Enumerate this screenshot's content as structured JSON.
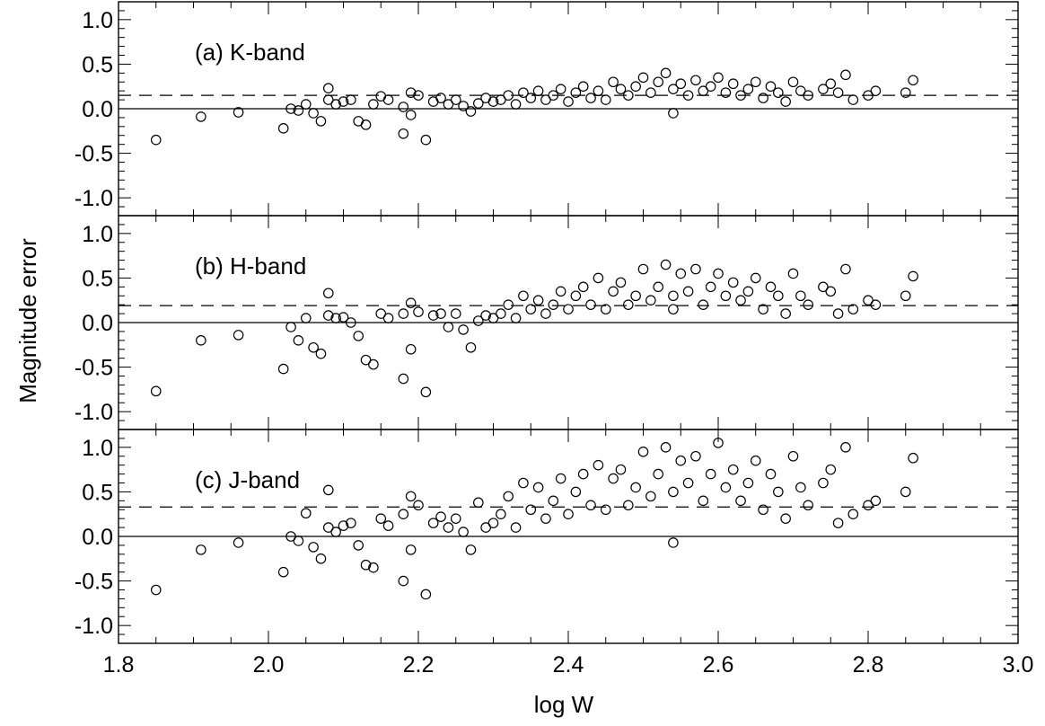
{
  "figure": {
    "ylabel": "Magnitude error",
    "xlabel": "log W"
  },
  "chart_data": [
    {
      "type": "scatter",
      "annotation": "(a) K-band",
      "xlim": [
        1.8,
        3.0
      ],
      "ylim": [
        -1.2,
        1.2
      ],
      "x_ticks": [
        "1.8",
        "2.0",
        "2.2",
        "2.4",
        "2.6",
        "2.8",
        "3.0"
      ],
      "y_ticks": [
        "-1.0",
        "-0.5",
        "0.0",
        "0.5",
        "1.0"
      ],
      "reference_lines": [
        {
          "style": "solid",
          "y": 0.0
        },
        {
          "style": "dashed",
          "y": 0.15
        }
      ],
      "x": [
        1.85,
        1.91,
        1.96,
        2.02,
        2.03,
        2.04,
        2.05,
        2.06,
        2.07,
        2.08,
        2.08,
        2.09,
        2.1,
        2.11,
        2.12,
        2.13,
        2.14,
        2.15,
        2.16,
        2.18,
        2.18,
        2.19,
        2.19,
        2.2,
        2.21,
        2.22,
        2.23,
        2.24,
        2.25,
        2.26,
        2.27,
        2.28,
        2.29,
        2.3,
        2.31,
        2.32,
        2.33,
        2.34,
        2.35,
        2.36,
        2.37,
        2.38,
        2.39,
        2.4,
        2.41,
        2.42,
        2.43,
        2.44,
        2.45,
        2.46,
        2.47,
        2.48,
        2.49,
        2.5,
        2.51,
        2.52,
        2.53,
        2.54,
        2.54,
        2.55,
        2.56,
        2.57,
        2.58,
        2.59,
        2.6,
        2.61,
        2.62,
        2.63,
        2.64,
        2.65,
        2.66,
        2.67,
        2.68,
        2.69,
        2.7,
        2.71,
        2.72,
        2.74,
        2.75,
        2.76,
        2.77,
        2.78,
        2.8,
        2.81,
        2.85,
        2.86
      ],
      "y": [
        -0.35,
        -0.09,
        -0.04,
        -0.22,
        0.0,
        -0.02,
        0.05,
        -0.05,
        -0.14,
        0.1,
        0.23,
        0.05,
        0.08,
        0.1,
        -0.14,
        -0.18,
        0.05,
        0.14,
        0.1,
        -0.28,
        0.02,
        -0.07,
        0.18,
        0.15,
        -0.35,
        0.08,
        0.12,
        0.05,
        0.1,
        0.03,
        -0.03,
        0.06,
        0.12,
        0.08,
        0.1,
        0.15,
        0.05,
        0.18,
        0.12,
        0.2,
        0.1,
        0.15,
        0.22,
        0.08,
        0.18,
        0.25,
        0.12,
        0.2,
        0.1,
        0.3,
        0.22,
        0.15,
        0.25,
        0.35,
        0.18,
        0.3,
        0.4,
        -0.05,
        0.22,
        0.28,
        0.15,
        0.32,
        0.2,
        0.25,
        0.35,
        0.18,
        0.28,
        0.15,
        0.22,
        0.3,
        0.12,
        0.25,
        0.18,
        0.08,
        0.3,
        0.2,
        0.15,
        0.22,
        0.28,
        0.18,
        0.38,
        0.1,
        0.15,
        0.2,
        0.18,
        0.32
      ]
    },
    {
      "type": "scatter",
      "annotation": "(b) H-band",
      "xlim": [
        1.8,
        3.0
      ],
      "ylim": [
        -1.2,
        1.2
      ],
      "x_ticks": [
        "1.8",
        "2.0",
        "2.2",
        "2.4",
        "2.6",
        "2.8",
        "3.0"
      ],
      "y_ticks": [
        "-1.0",
        "-0.5",
        "0.0",
        "0.5",
        "1.0"
      ],
      "reference_lines": [
        {
          "style": "solid",
          "y": 0.0
        },
        {
          "style": "dashed",
          "y": 0.19
        }
      ],
      "x": [
        1.85,
        1.91,
        1.96,
        2.02,
        2.03,
        2.04,
        2.05,
        2.06,
        2.07,
        2.08,
        2.08,
        2.09,
        2.1,
        2.11,
        2.12,
        2.13,
        2.14,
        2.15,
        2.16,
        2.18,
        2.18,
        2.19,
        2.19,
        2.2,
        2.21,
        2.22,
        2.23,
        2.24,
        2.25,
        2.26,
        2.27,
        2.28,
        2.29,
        2.3,
        2.31,
        2.32,
        2.33,
        2.34,
        2.35,
        2.36,
        2.37,
        2.38,
        2.39,
        2.4,
        2.41,
        2.42,
        2.43,
        2.44,
        2.45,
        2.46,
        2.47,
        2.48,
        2.49,
        2.5,
        2.51,
        2.52,
        2.53,
        2.54,
        2.54,
        2.55,
        2.56,
        2.57,
        2.58,
        2.59,
        2.6,
        2.61,
        2.62,
        2.63,
        2.64,
        2.65,
        2.66,
        2.67,
        2.68,
        2.69,
        2.7,
        2.71,
        2.72,
        2.74,
        2.75,
        2.76,
        2.77,
        2.78,
        2.8,
        2.81,
        2.85,
        2.86
      ],
      "y": [
        -0.77,
        -0.2,
        -0.14,
        -0.52,
        -0.05,
        -0.2,
        0.05,
        -0.28,
        -0.35,
        0.08,
        0.33,
        0.05,
        0.06,
        0.0,
        -0.15,
        -0.42,
        -0.47,
        0.1,
        0.05,
        -0.63,
        0.1,
        -0.3,
        0.22,
        0.12,
        -0.78,
        0.08,
        0.1,
        -0.05,
        0.1,
        -0.08,
        -0.28,
        0.02,
        0.08,
        0.05,
        0.1,
        0.2,
        0.05,
        0.3,
        0.15,
        0.25,
        0.1,
        0.2,
        0.35,
        0.15,
        0.3,
        0.4,
        0.2,
        0.5,
        0.15,
        0.35,
        0.45,
        0.2,
        0.3,
        0.6,
        0.25,
        0.4,
        0.65,
        0.3,
        0.15,
        0.55,
        0.35,
        0.6,
        0.2,
        0.4,
        0.55,
        0.3,
        0.45,
        0.25,
        0.35,
        0.5,
        0.15,
        0.4,
        0.3,
        0.1,
        0.55,
        0.3,
        0.2,
        0.4,
        0.35,
        0.1,
        0.6,
        0.15,
        0.25,
        0.2,
        0.3,
        0.52
      ]
    },
    {
      "type": "scatter",
      "annotation": "(c) J-band",
      "xlim": [
        1.8,
        3.0
      ],
      "ylim": [
        -1.2,
        1.2
      ],
      "x_ticks": [
        "1.8",
        "2.0",
        "2.2",
        "2.4",
        "2.6",
        "2.8",
        "3.0"
      ],
      "y_ticks": [
        "-1.0",
        "-0.5",
        "0.0",
        "0.5",
        "1.0"
      ],
      "reference_lines": [
        {
          "style": "solid",
          "y": 0.0
        },
        {
          "style": "dashed",
          "y": 0.33
        }
      ],
      "x": [
        1.85,
        1.91,
        1.96,
        2.02,
        2.03,
        2.04,
        2.05,
        2.06,
        2.07,
        2.08,
        2.08,
        2.09,
        2.1,
        2.11,
        2.12,
        2.13,
        2.14,
        2.15,
        2.16,
        2.18,
        2.18,
        2.19,
        2.19,
        2.2,
        2.21,
        2.22,
        2.23,
        2.24,
        2.25,
        2.26,
        2.27,
        2.28,
        2.29,
        2.3,
        2.31,
        2.32,
        2.33,
        2.34,
        2.35,
        2.36,
        2.37,
        2.38,
        2.39,
        2.4,
        2.41,
        2.42,
        2.43,
        2.44,
        2.45,
        2.46,
        2.47,
        2.48,
        2.49,
        2.5,
        2.51,
        2.52,
        2.53,
        2.54,
        2.54,
        2.55,
        2.56,
        2.57,
        2.58,
        2.59,
        2.6,
        2.61,
        2.62,
        2.63,
        2.64,
        2.65,
        2.66,
        2.67,
        2.68,
        2.69,
        2.7,
        2.71,
        2.72,
        2.74,
        2.75,
        2.76,
        2.77,
        2.78,
        2.8,
        2.81,
        2.85,
        2.86
      ],
      "y": [
        -0.6,
        -0.15,
        -0.07,
        -0.4,
        0.0,
        -0.05,
        0.26,
        -0.12,
        -0.25,
        0.1,
        0.52,
        0.05,
        0.12,
        0.15,
        -0.1,
        -0.32,
        -0.35,
        0.2,
        0.12,
        -0.5,
        0.25,
        -0.15,
        0.45,
        0.35,
        -0.65,
        0.15,
        0.22,
        0.1,
        0.2,
        0.05,
        -0.15,
        0.38,
        0.1,
        0.15,
        0.25,
        0.45,
        0.1,
        0.6,
        0.3,
        0.55,
        0.2,
        0.4,
        0.65,
        0.25,
        0.5,
        0.7,
        0.35,
        0.8,
        0.3,
        0.65,
        0.75,
        0.35,
        0.55,
        0.95,
        0.45,
        0.7,
        1.0,
        0.5,
        -0.07,
        0.85,
        0.6,
        0.9,
        0.4,
        0.7,
        1.05,
        0.55,
        0.75,
        0.4,
        0.6,
        0.85,
        0.3,
        0.7,
        0.5,
        0.2,
        0.9,
        0.55,
        0.35,
        0.6,
        0.75,
        0.15,
        1.0,
        0.25,
        0.35,
        0.4,
        0.5,
        0.88
      ]
    }
  ]
}
